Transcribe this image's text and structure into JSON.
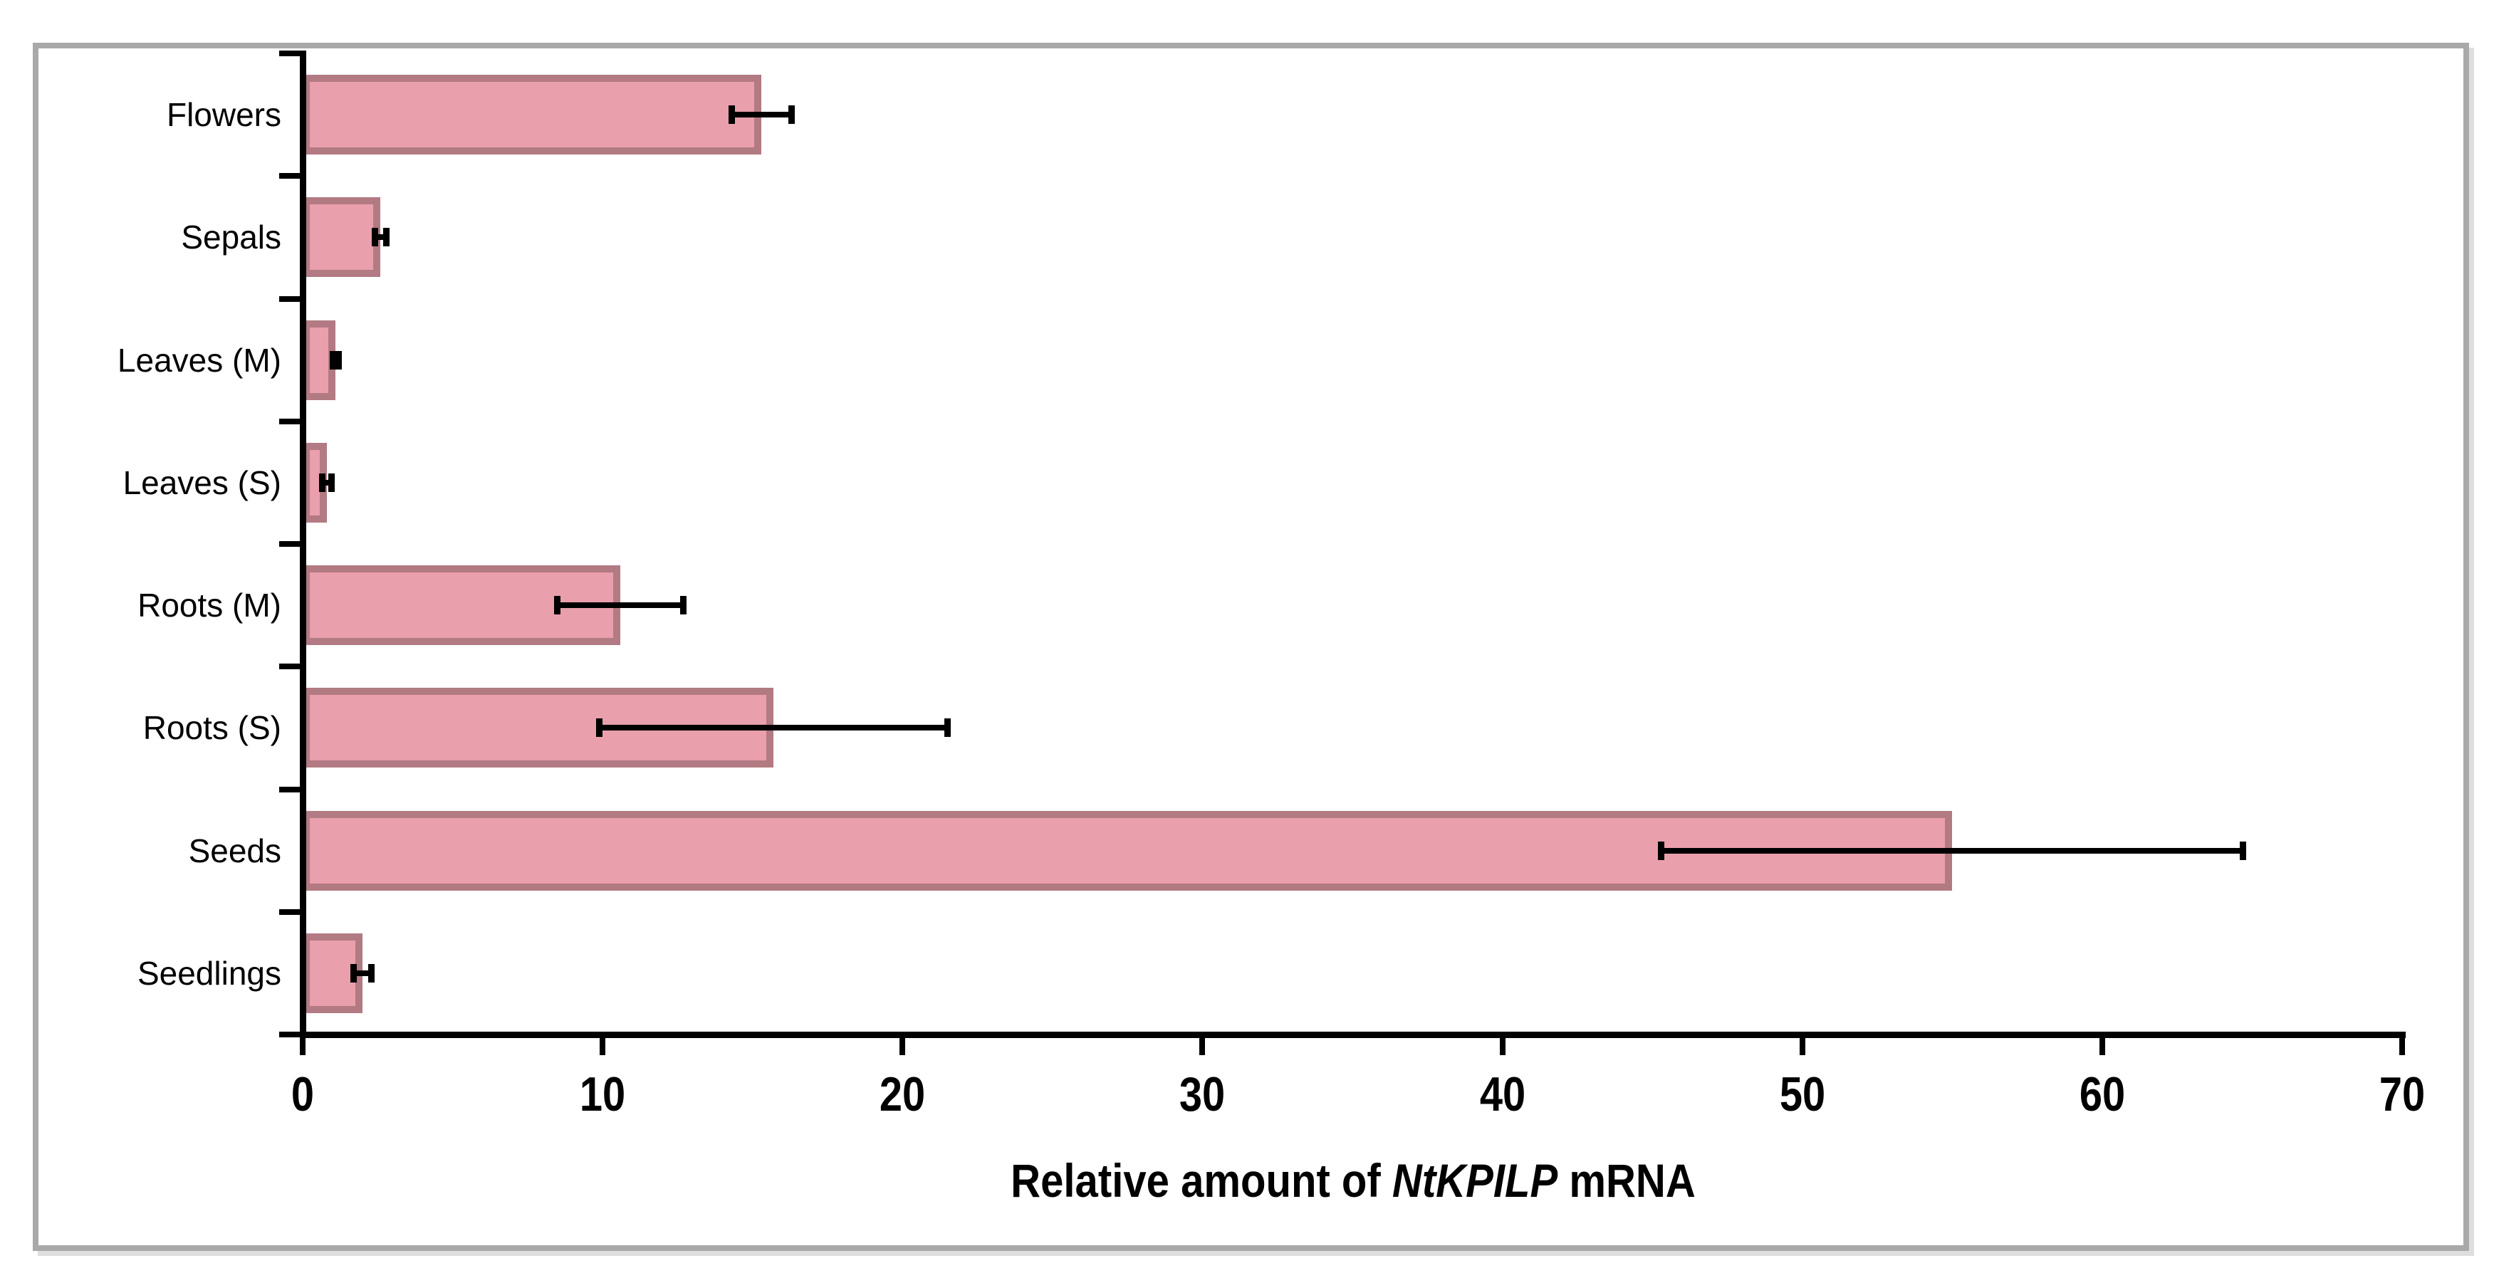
{
  "figure": {
    "background": "#ffffff",
    "frame_border_color": "#a9a9a9"
  },
  "chart_data": {
    "type": "bar",
    "orientation": "horizontal",
    "title": "",
    "xlabel": "Relative amount of NtKPILP mRNA",
    "xlabel_parts": {
      "prefix": "Relative amount of ",
      "italic_gene": "NtKPILP",
      "suffix": " mRNA"
    },
    "categories": [
      "Flowers",
      "Sepals",
      "Leaves (M)",
      "Leaves (S)",
      "Roots (M)",
      "Roots (S)",
      "Seeds",
      "Seedlings"
    ],
    "values": [
      15.3,
      2.6,
      1.1,
      0.8,
      10.6,
      15.7,
      55.0,
      2.0
    ],
    "errors": [
      1.0,
      0.2,
      0.1,
      0.15,
      2.1,
      5.8,
      9.7,
      0.3
    ],
    "x_ticks": [
      "0",
      "10",
      "20",
      "30",
      "40",
      "50",
      "60",
      "70"
    ],
    "x_tick_values": [
      0,
      10,
      20,
      30,
      40,
      50,
      60,
      70
    ],
    "xlim": [
      0,
      70
    ],
    "ylabel": "",
    "grid": false,
    "legend": false,
    "colors": {
      "bar_fill": "#ea9fac",
      "bar_stroke": "#b27a82",
      "axis": "#000000",
      "error_bar": "#000000",
      "text": "#000000"
    }
  }
}
